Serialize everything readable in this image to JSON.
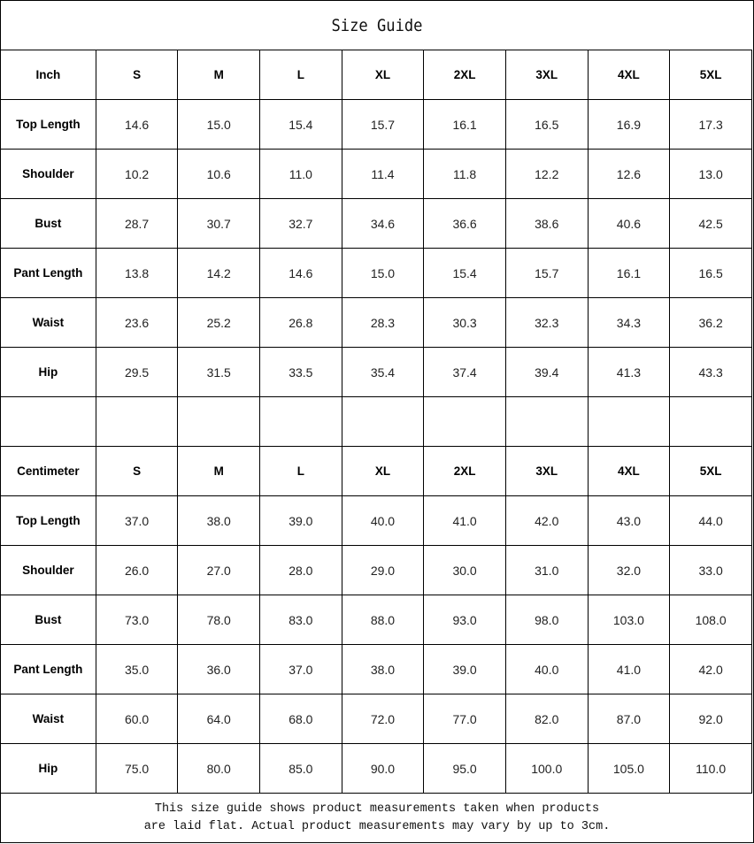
{
  "title": "Size Guide",
  "tables": [
    {
      "unit": "Inch",
      "sizes": [
        "S",
        "M",
        "L",
        "XL",
        "2XL",
        "3XL",
        "4XL",
        "5XL"
      ],
      "rows": [
        {
          "label": "Top Length",
          "values": [
            "14.6",
            "15.0",
            "15.4",
            "15.7",
            "16.1",
            "16.5",
            "16.9",
            "17.3"
          ]
        },
        {
          "label": "Shoulder",
          "values": [
            "10.2",
            "10.6",
            "11.0",
            "11.4",
            "11.8",
            "12.2",
            "12.6",
            "13.0"
          ]
        },
        {
          "label": "Bust",
          "values": [
            "28.7",
            "30.7",
            "32.7",
            "34.6",
            "36.6",
            "38.6",
            "40.6",
            "42.5"
          ]
        },
        {
          "label": "Pant Length",
          "values": [
            "13.8",
            "14.2",
            "14.6",
            "15.0",
            "15.4",
            "15.7",
            "16.1",
            "16.5"
          ]
        },
        {
          "label": "Waist",
          "values": [
            "23.6",
            "25.2",
            "26.8",
            "28.3",
            "30.3",
            "32.3",
            "34.3",
            "36.2"
          ]
        },
        {
          "label": "Hip",
          "values": [
            "29.5",
            "31.5",
            "33.5",
            "35.4",
            "37.4",
            "39.4",
            "41.3",
            "43.3"
          ]
        }
      ]
    },
    {
      "unit": "Centimeter",
      "sizes": [
        "S",
        "M",
        "L",
        "XL",
        "2XL",
        "3XL",
        "4XL",
        "5XL"
      ],
      "rows": [
        {
          "label": "Top Length",
          "values": [
            "37.0",
            "38.0",
            "39.0",
            "40.0",
            "41.0",
            "42.0",
            "43.0",
            "44.0"
          ]
        },
        {
          "label": "Shoulder",
          "values": [
            "26.0",
            "27.0",
            "28.0",
            "29.0",
            "30.0",
            "31.0",
            "32.0",
            "33.0"
          ]
        },
        {
          "label": "Bust",
          "values": [
            "73.0",
            "78.0",
            "83.0",
            "88.0",
            "93.0",
            "98.0",
            "103.0",
            "108.0"
          ]
        },
        {
          "label": "Pant Length",
          "values": [
            "35.0",
            "36.0",
            "37.0",
            "38.0",
            "39.0",
            "40.0",
            "41.0",
            "42.0"
          ]
        },
        {
          "label": "Waist",
          "values": [
            "60.0",
            "64.0",
            "68.0",
            "72.0",
            "77.0",
            "82.0",
            "87.0",
            "92.0"
          ]
        },
        {
          "label": "Hip",
          "values": [
            "75.0",
            "80.0",
            "85.0",
            "90.0",
            "95.0",
            "100.0",
            "105.0",
            "110.0"
          ]
        }
      ]
    }
  ],
  "footer": {
    "line1": "This size guide shows product measurements taken when products",
    "line2": "are laid flat. Actual product measurements may vary by up to 3cm."
  }
}
